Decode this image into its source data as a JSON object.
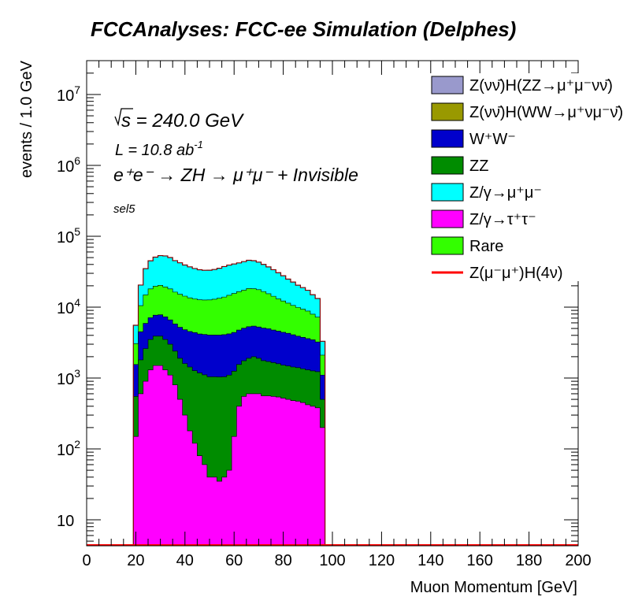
{
  "chart_data": {
    "type": "area",
    "title": "FCCAnalyses: FCC-ee Simulation (Delphes)",
    "xlabel": "Muon Momentum [GeV]",
    "ylabel": "events / 1.0 GeV",
    "xlim": [
      0,
      200
    ],
    "ylim": [
      4.3,
      30000000
    ],
    "yscale": "log",
    "x_ticks": [
      0,
      20,
      40,
      60,
      80,
      100,
      120,
      140,
      160,
      180,
      200
    ],
    "y_tick_labels": [
      {
        "value": 10,
        "base": "10",
        "exp": ""
      },
      {
        "value": 100,
        "base": "10",
        "exp": "2"
      },
      {
        "value": 1000,
        "base": "10",
        "exp": "3"
      },
      {
        "value": 10000,
        "base": "10",
        "exp": "4"
      },
      {
        "value": 100000,
        "base": "10",
        "exp": "5"
      },
      {
        "value": 1000000,
        "base": "10",
        "exp": "6"
      },
      {
        "value": 10000000,
        "base": "10",
        "exp": "7"
      }
    ],
    "annotations": {
      "sqrt_s": "s",
      "energy": " = 240.0 GeV",
      "lumi_prefix": "L = 10.8 ab",
      "lumi_exp": "-1",
      "process": "e⁺e⁻ → ZH → μ⁺μ⁻ + Invisible",
      "selection": "sel5"
    },
    "x": [
      20,
      22,
      24,
      26,
      28,
      30,
      32,
      34,
      36,
      38,
      40,
      42,
      44,
      46,
      48,
      50,
      52,
      54,
      56,
      58,
      60,
      62,
      64,
      66,
      68,
      70,
      72,
      74,
      76,
      78,
      80,
      82,
      84,
      86,
      88,
      90,
      92,
      94,
      96
    ],
    "series": [
      {
        "name": "Z/γ→τ⁺τ⁻",
        "color": "#ff00ff",
        "values": [
          150,
          600,
          900,
          1300,
          1500,
          1500,
          1300,
          1100,
          800,
          500,
          300,
          180,
          120,
          80,
          60,
          40,
          40,
          35,
          40,
          50,
          150,
          400,
          550,
          600,
          600,
          600,
          560,
          560,
          550,
          540,
          520,
          500,
          480,
          470,
          450,
          420,
          400,
          380,
          200
        ]
      },
      {
        "name": "ZZ",
        "color": "#008c00",
        "values": [
          400,
          1200,
          1700,
          2200,
          2400,
          2400,
          2200,
          1900,
          1600,
          1400,
          1300,
          1250,
          1150,
          1100,
          1050,
          1000,
          1000,
          1000,
          1000,
          1050,
          1100,
          1150,
          1200,
          1300,
          1400,
          1300,
          1200,
          1150,
          1100,
          1050,
          1000,
          980,
          950,
          930,
          900,
          880,
          860,
          850,
          300
        ]
      },
      {
        "name": "W⁺W⁻",
        "color": "#0000cc",
        "values": [
          1000,
          2700,
          3300,
          3600,
          3800,
          3900,
          3800,
          3600,
          3400,
          3300,
          3200,
          3100,
          3100,
          3000,
          3000,
          3000,
          3000,
          3000,
          3050,
          3100,
          3150,
          3200,
          3300,
          3400,
          3400,
          3350,
          3300,
          3250,
          3100,
          3000,
          2900,
          2800,
          2650,
          2500,
          2400,
          2300,
          2200,
          2000,
          600
        ]
      },
      {
        "name": "Rare",
        "color": "#33ff00",
        "values": [
          1500,
          6000,
          9000,
          11000,
          12000,
          12500,
          12000,
          11500,
          10500,
          10000,
          9500,
          9000,
          8700,
          8500,
          8500,
          8600,
          8900,
          9300,
          9800,
          10500,
          11200,
          11800,
          12300,
          13000,
          12800,
          12400,
          11500,
          10500,
          9500,
          8500,
          7800,
          7100,
          6500,
          6000,
          5600,
          5200,
          4500,
          4000,
          1000
        ]
      },
      {
        "name": "Z/γ→μ⁺μ⁻",
        "color": "#00ffff",
        "values": [
          2500,
          10000,
          20000,
          27000,
          31000,
          33000,
          33500,
          32000,
          29000,
          27000,
          25000,
          23500,
          22000,
          21000,
          20500,
          20500,
          21000,
          22000,
          23500,
          24500,
          25000,
          25500,
          26500,
          27500,
          27000,
          25500,
          23500,
          21500,
          19500,
          17500,
          15500,
          13500,
          12000,
          10500,
          9500,
          8500,
          7000,
          6000,
          1200
        ]
      }
    ],
    "signal": {
      "name": "Z(μ⁻μ⁺)H(4ν)",
      "color": "#ff0000"
    },
    "legend_position": "top-right",
    "legend": [
      {
        "label": "Z(νν̄)H(ZZ→μ⁺μ⁻νν̄)",
        "color": "#9999cc",
        "type": "box"
      },
      {
        "label": "Z(νν̄)H(WW→μ⁺νμ⁻ν̄)",
        "color": "#999900",
        "type": "box"
      },
      {
        "label": "W⁺W⁻",
        "color": "#0000cc",
        "type": "box"
      },
      {
        "label": "ZZ",
        "color": "#008c00",
        "type": "box"
      },
      {
        "label": "Z/γ→μ⁺μ⁻",
        "color": "#00ffff",
        "type": "box"
      },
      {
        "label": "Z/γ→τ⁺τ⁻",
        "color": "#ff00ff",
        "type": "box"
      },
      {
        "label": "Rare",
        "color": "#33ff00",
        "type": "box"
      },
      {
        "label": "Z(μ⁻μ⁺)H(4ν)",
        "color": "#ff0000",
        "type": "line"
      }
    ]
  }
}
